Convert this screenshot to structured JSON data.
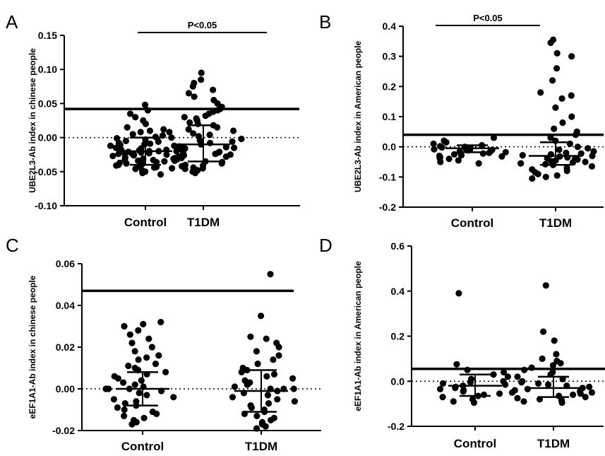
{
  "chart_data": [
    {
      "panel": "A",
      "type": "scatter",
      "title": "",
      "xlabel": "",
      "ylabel": "UBE2L3-Ab index in chinese people",
      "categories": [
        "Control",
        "T1DM"
      ],
      "ylim": [
        -0.1,
        0.15
      ],
      "yticks": [
        -0.1,
        -0.05,
        0.0,
        0.05,
        0.1,
        0.15
      ],
      "yticklabels": [
        "-0.10",
        "-0.05",
        "0.00",
        "0.05",
        "0.10",
        "0.15"
      ],
      "cutoff": 0.042,
      "zero_line": 0,
      "significance": "P<0.05",
      "series": [
        {
          "category": "Control",
          "mean": -0.02,
          "sd_upper": 0.0,
          "sd_lower": -0.04,
          "values": [
            0.048,
            0.04,
            0.035,
            0.03,
            0.025,
            0.02,
            0.015,
            0.012,
            0.01,
            0.008,
            0.005,
            0.003,
            0.001,
            -0.001,
            -0.003,
            -0.005,
            -0.006,
            -0.008,
            -0.009,
            -0.01,
            -0.011,
            -0.012,
            -0.013,
            -0.014,
            -0.015,
            -0.016,
            -0.017,
            -0.018,
            -0.019,
            -0.02,
            -0.02,
            -0.021,
            -0.021,
            -0.022,
            -0.022,
            -0.023,
            -0.023,
            -0.024,
            -0.024,
            -0.025,
            -0.025,
            -0.026,
            -0.027,
            -0.028,
            -0.029,
            -0.03,
            -0.031,
            -0.032,
            -0.033,
            -0.034,
            -0.035,
            -0.036,
            -0.037,
            -0.038,
            -0.039,
            -0.04,
            -0.041,
            -0.042,
            -0.043,
            -0.044,
            -0.045,
            -0.046,
            -0.048,
            -0.05,
            -0.052,
            -0.054
          ]
        },
        {
          "category": "T1DM",
          "mean": -0.01,
          "sd_upper": 0.018,
          "sd_lower": -0.035,
          "values": [
            0.095,
            0.085,
            0.08,
            0.075,
            0.07,
            0.065,
            0.06,
            0.055,
            0.05,
            0.045,
            0.042,
            0.04,
            0.038,
            0.035,
            0.032,
            0.03,
            0.028,
            0.025,
            0.022,
            0.02,
            0.018,
            0.015,
            0.012,
            0.01,
            0.008,
            0.006,
            0.004,
            0.002,
            0.0,
            -0.002,
            -0.004,
            -0.006,
            -0.008,
            -0.01,
            -0.012,
            -0.014,
            -0.015,
            -0.016,
            -0.018,
            -0.02,
            -0.021,
            -0.022,
            -0.024,
            -0.025,
            -0.026,
            -0.028,
            -0.03,
            -0.031,
            -0.032,
            -0.034,
            -0.035,
            -0.036,
            -0.038,
            -0.04,
            -0.041,
            -0.042,
            -0.044,
            -0.045,
            -0.046,
            -0.048,
            -0.05,
            -0.052
          ]
        }
      ]
    },
    {
      "panel": "B",
      "type": "scatter",
      "title": "",
      "xlabel": "",
      "ylabel": "UBE2L3-Ab index in American people",
      "categories": [
        "Control",
        "T1DM"
      ],
      "ylim": [
        -0.2,
        0.4
      ],
      "yticks": [
        -0.2,
        -0.1,
        0.0,
        0.1,
        0.2,
        0.3,
        0.4
      ],
      "yticklabels": [
        "-0.2",
        "-0.1",
        "0.0",
        "0.1",
        "0.2",
        "0.3",
        "0.4"
      ],
      "cutoff": 0.04,
      "zero_line": 0,
      "significance": "P<0.05",
      "series": [
        {
          "category": "Control",
          "mean": -0.005,
          "sd_upper": 0.005,
          "sd_lower": -0.018,
          "values": [
            0.03,
            0.02,
            0.015,
            0.01,
            0.005,
            0.002,
            0.0,
            -0.002,
            -0.004,
            -0.006,
            -0.008,
            -0.01,
            -0.012,
            -0.014,
            -0.016,
            -0.018,
            -0.02,
            -0.022,
            -0.025,
            -0.028,
            -0.03,
            -0.032,
            -0.035,
            -0.038,
            -0.04,
            -0.045,
            -0.05,
            -0.055
          ]
        },
        {
          "category": "T1DM",
          "mean": -0.03,
          "sd_upper": 0.015,
          "sd_lower": -0.06,
          "values": [
            0.355,
            0.345,
            0.31,
            0.3,
            0.26,
            0.22,
            0.18,
            0.17,
            0.16,
            0.13,
            0.1,
            0.08,
            0.06,
            0.05,
            0.04,
            0.03,
            0.02,
            0.01,
            0.0,
            -0.005,
            -0.01,
            -0.015,
            -0.02,
            -0.022,
            -0.025,
            -0.028,
            -0.03,
            -0.032,
            -0.035,
            -0.038,
            -0.04,
            -0.042,
            -0.045,
            -0.048,
            -0.05,
            -0.052,
            -0.055,
            -0.058,
            -0.06,
            -0.065,
            -0.07,
            -0.075,
            -0.08,
            -0.085,
            -0.09,
            -0.095,
            -0.1,
            -0.105
          ]
        }
      ]
    },
    {
      "panel": "C",
      "type": "scatter",
      "title": "",
      "xlabel": "",
      "ylabel": "eEF1A1-Ab index in chinese people",
      "categories": [
        "Control",
        "T1DM"
      ],
      "ylim": [
        -0.02,
        0.06
      ],
      "yticks": [
        -0.02,
        0.0,
        0.02,
        0.04,
        0.06
      ],
      "yticklabels": [
        "-0.02",
        "0.00",
        "0.02",
        "0.04",
        "0.06"
      ],
      "cutoff": 0.047,
      "zero_line": 0,
      "significance": "",
      "series": [
        {
          "category": "Control",
          "mean": 0.0,
          "sd_upper": 0.008,
          "sd_lower": -0.008,
          "values": [
            0.032,
            0.031,
            0.03,
            0.028,
            0.026,
            0.024,
            0.022,
            0.02,
            0.018,
            0.016,
            0.015,
            0.014,
            0.012,
            0.011,
            0.01,
            0.009,
            0.008,
            0.007,
            0.006,
            0.005,
            0.004,
            0.003,
            0.002,
            0.001,
            0.0,
            0.0,
            0.0,
            -0.001,
            -0.002,
            -0.003,
            -0.004,
            -0.005,
            -0.006,
            -0.007,
            -0.008,
            -0.009,
            -0.01,
            -0.011,
            -0.012,
            -0.013,
            -0.014,
            -0.015,
            -0.016,
            -0.017
          ]
        },
        {
          "category": "T1DM",
          "mean": -0.001,
          "sd_upper": 0.009,
          "sd_lower": -0.011,
          "values": [
            0.055,
            0.035,
            0.025,
            0.024,
            0.022,
            0.02,
            0.018,
            0.016,
            0.014,
            0.012,
            0.01,
            0.009,
            0.008,
            0.007,
            0.006,
            0.005,
            0.004,
            0.003,
            0.002,
            0.001,
            0.0,
            0.0,
            0.0,
            -0.001,
            -0.002,
            -0.003,
            -0.004,
            -0.005,
            -0.006,
            -0.007,
            -0.008,
            -0.009,
            -0.01,
            -0.011,
            -0.012,
            -0.013,
            -0.014,
            -0.015,
            -0.016,
            -0.017,
            -0.018,
            -0.019
          ]
        }
      ]
    },
    {
      "panel": "D",
      "type": "scatter",
      "title": "",
      "xlabel": "",
      "ylabel": "eEF1A1-Ab index in American people",
      "categories": [
        "Control",
        "T1DM"
      ],
      "ylim": [
        -0.2,
        0.6
      ],
      "yticks": [
        -0.2,
        0.0,
        0.2,
        0.4,
        0.6
      ],
      "yticklabels": [
        "-0.2",
        "0.0",
        "0.2",
        "0.4",
        "0.6"
      ],
      "cutoff": 0.055,
      "zero_line": 0,
      "significance": "",
      "series": [
        {
          "category": "Control",
          "mean": -0.02,
          "sd_upper": 0.03,
          "sd_lower": -0.065,
          "values": [
            0.39,
            0.075,
            0.05,
            0.04,
            0.03,
            0.02,
            0.01,
            0.0,
            -0.005,
            -0.01,
            -0.015,
            -0.02,
            -0.025,
            -0.03,
            -0.035,
            -0.04,
            -0.045,
            -0.05,
            -0.055,
            -0.06,
            -0.065,
            -0.07,
            -0.08,
            -0.09,
            -0.095
          ]
        },
        {
          "category": "T1DM",
          "mean": -0.03,
          "sd_upper": 0.02,
          "sd_lower": -0.07,
          "values": [
            0.425,
            0.22,
            0.18,
            0.12,
            0.1,
            0.09,
            0.08,
            0.07,
            0.06,
            0.05,
            0.04,
            0.03,
            0.02,
            0.01,
            0.0,
            -0.005,
            -0.01,
            -0.015,
            -0.02,
            -0.025,
            -0.03,
            -0.035,
            -0.04,
            -0.045,
            -0.05,
            -0.055,
            -0.06,
            -0.065,
            -0.07,
            -0.075,
            -0.08,
            -0.085,
            -0.09,
            -0.095
          ]
        }
      ]
    }
  ]
}
